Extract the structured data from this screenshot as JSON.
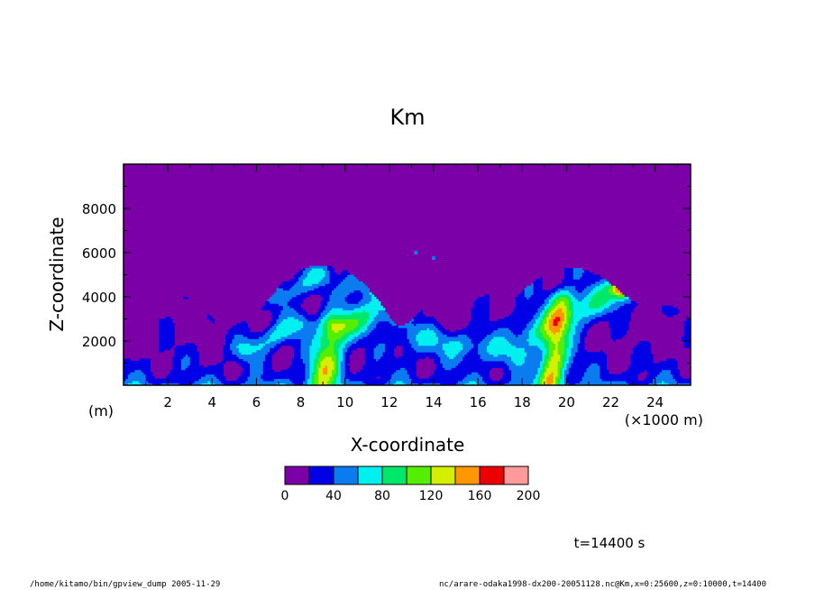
{
  "chart_data": {
    "type": "heatmap",
    "title": "Km",
    "xlabel": "X-coordinate",
    "ylabel": "Z-coordinate",
    "x_unit_label": "(×1000 m)",
    "y_unit_label": "(m)",
    "xlim": [
      0,
      25.6
    ],
    "ylim": [
      0,
      10000
    ],
    "x_ticks": [
      2,
      4,
      6,
      8,
      10,
      12,
      14,
      16,
      18,
      20,
      22,
      24
    ],
    "x_tick_labels": [
      "2",
      "4",
      "6",
      "8",
      "10",
      "12",
      "14",
      "16",
      "18",
      "20",
      "22",
      "24"
    ],
    "y_ticks": [
      2000,
      4000,
      6000,
      8000
    ],
    "y_tick_labels": [
      "2000",
      "4000",
      "6000",
      "8000"
    ],
    "grid": false,
    "colorbar": {
      "levels": [
        0,
        20,
        40,
        60,
        80,
        100,
        120,
        140,
        160,
        180,
        200
      ],
      "tick_labels": [
        "0",
        "40",
        "80",
        "120",
        "160",
        "200"
      ],
      "tick_values": [
        0,
        40,
        80,
        120,
        160,
        200
      ],
      "colors": [
        "#7b00a8",
        "#0000e6",
        "#0a7cf0",
        "#00f0f0",
        "#00e86a",
        "#55ee00",
        "#d4f000",
        "#ff9800",
        "#ee0000",
        "#ff9a9a"
      ]
    },
    "time_label": "t=14400 s"
  },
  "footer": {
    "left": "/home/kitamo/bin/gpview_dump  2005-11-29",
    "right": "nc/arare-odaka1998-dx200-20051128.nc@Km,x=0:25600,z=0:10000,t=14400"
  }
}
